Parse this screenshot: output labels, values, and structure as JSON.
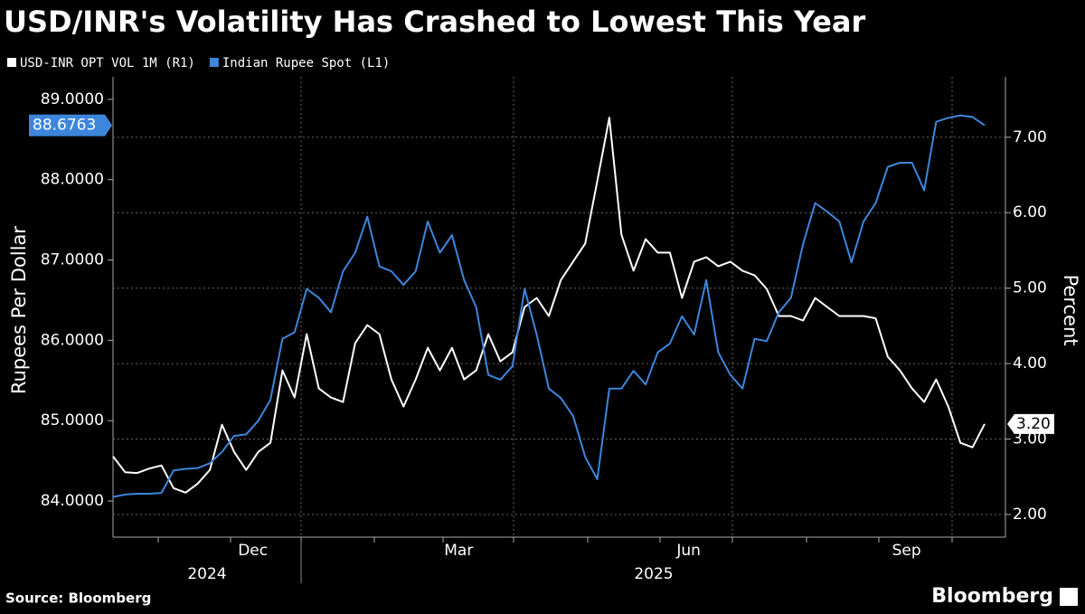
{
  "chart_data": {
    "type": "line",
    "title": "USD/INR's Volatility Has Crashed to Lowest This Year",
    "y_label": "Rupees Per Dollar",
    "y2_label": "Percent",
    "source": "Source: Bloomberg",
    "brand": "Bloomberg",
    "categories": [
      null,
      null,
      null,
      null,
      null,
      null,
      null,
      null,
      null,
      null,
      null,
      null,
      "Dec",
      null,
      null,
      null,
      null,
      null,
      null,
      null,
      null,
      null,
      null,
      null,
      null,
      null,
      null,
      null,
      null,
      "Mar",
      null,
      null,
      null,
      null,
      null,
      null,
      null,
      null,
      null,
      null,
      null,
      null,
      null,
      null,
      null,
      null,
      null,
      null,
      "Jun",
      null,
      null,
      null,
      null,
      null,
      null,
      null,
      null,
      null,
      null,
      null,
      null,
      null,
      null,
      null,
      null,
      null,
      "Sep",
      null,
      null,
      null,
      null,
      null,
      null
    ],
    "x_groups": [
      "2024",
      "2025"
    ],
    "series": [
      {
        "name": "USD-INR OPT VOL 1M (R1)",
        "color": "#ffffff",
        "axis": "y2",
        "end_label": "3.20",
        "values": [
          2.77,
          2.56,
          2.55,
          2.61,
          2.65,
          2.35,
          2.29,
          2.41,
          2.59,
          3.19,
          2.83,
          2.59,
          2.83,
          2.95,
          3.91,
          3.55,
          4.39,
          3.67,
          3.55,
          3.49,
          4.27,
          4.51,
          4.39,
          3.79,
          3.43,
          3.79,
          4.21,
          3.91,
          4.21,
          3.79,
          3.91,
          4.39,
          4.03,
          4.15,
          4.75,
          4.87,
          4.63,
          5.11,
          5.35,
          5.59,
          6.42,
          7.26,
          5.71,
          5.23,
          5.65,
          5.47,
          5.47,
          4.87,
          5.35,
          5.41,
          5.29,
          5.35,
          5.23,
          5.17,
          4.99,
          4.63,
          4.63,
          4.57,
          4.87,
          4.75,
          4.63,
          4.63,
          4.63,
          4.6,
          4.09,
          3.91,
          3.67,
          3.49,
          3.79,
          3.43,
          2.95,
          2.89,
          3.2
        ]
      },
      {
        "name": "Indian Rupee Spot (L1)",
        "color": "#3d86dc",
        "axis": "y",
        "end_label": "88.6763",
        "values": [
          84.05,
          84.08,
          84.09,
          84.09,
          84.1,
          84.38,
          84.4,
          84.41,
          84.47,
          84.61,
          84.81,
          84.83,
          85.0,
          85.26,
          86.02,
          86.1,
          86.64,
          86.53,
          86.35,
          86.86,
          87.09,
          87.54,
          86.92,
          86.86,
          86.69,
          86.86,
          87.48,
          87.09,
          87.31,
          86.75,
          86.41,
          85.57,
          85.51,
          85.68,
          86.64,
          86.07,
          85.4,
          85.28,
          85.06,
          84.55,
          84.27,
          85.4,
          85.4,
          85.62,
          85.45,
          85.85,
          85.96,
          86.3,
          86.07,
          86.75,
          85.85,
          85.57,
          85.4,
          86.02,
          85.99,
          86.35,
          86.53,
          87.2,
          87.71,
          87.6,
          87.48,
          86.97,
          87.48,
          87.71,
          88.16,
          88.21,
          88.21,
          87.87,
          88.72,
          88.77,
          88.8,
          88.78,
          88.6763
        ]
      }
    ],
    "ylim": [
      83.55,
      89.28
    ],
    "yticks": [
      {
        "value": 84,
        "label": "84.0000"
      },
      {
        "value": 85,
        "label": "85.0000"
      },
      {
        "value": 86,
        "label": "86.0000"
      },
      {
        "value": 87,
        "label": "87.0000"
      },
      {
        "value": 88,
        "label": "88.0000"
      },
      {
        "value": 89,
        "label": "89.0000"
      }
    ],
    "y2lim": [
      1.7,
      7.8
    ],
    "y2ticks": [
      {
        "value": 2,
        "label": "2.00"
      },
      {
        "value": 3,
        "label": "3.00"
      },
      {
        "value": 4,
        "label": "4.00"
      },
      {
        "value": 5,
        "label": "5.00"
      },
      {
        "value": 6,
        "label": "6.00"
      },
      {
        "value": 7,
        "label": "7.00"
      }
    ],
    "grid": true
  }
}
